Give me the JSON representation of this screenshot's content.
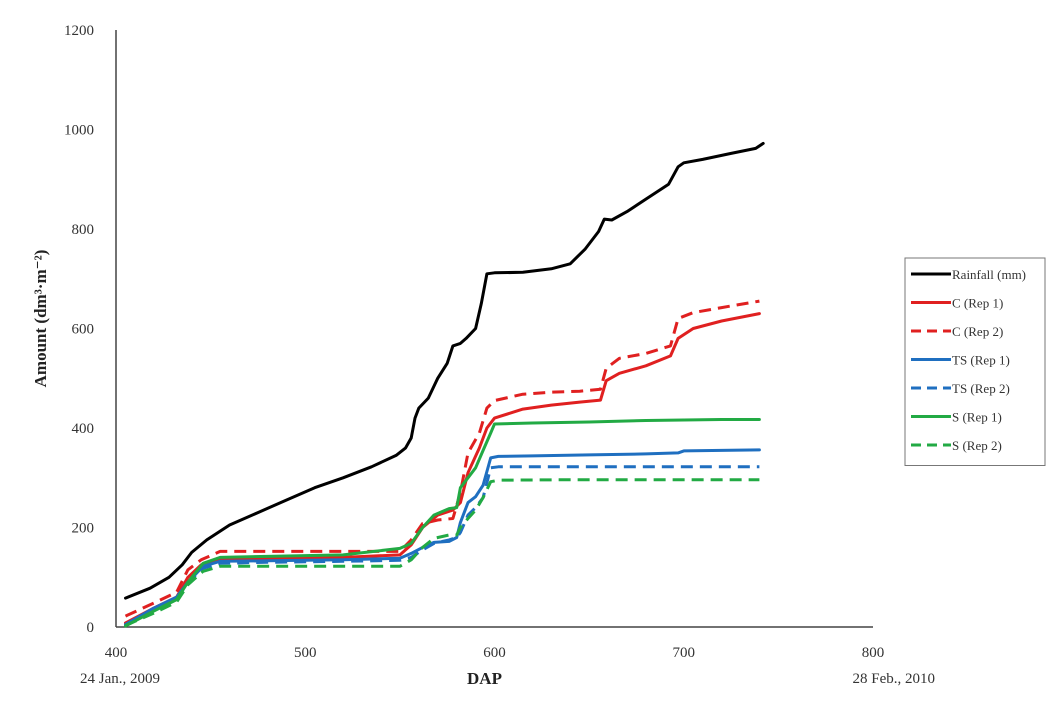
{
  "chart_data": {
    "type": "line",
    "title": "",
    "xlabel": "DAP",
    "ylabel": "Amount (dm³·m⁻²)",
    "xlim": [
      400,
      800
    ],
    "ylim": [
      0,
      1200
    ],
    "x_ticks": [
      400,
      500,
      600,
      700,
      800
    ],
    "y_ticks": [
      0,
      200,
      400,
      600,
      800,
      1000,
      1200
    ],
    "x_annotations": [
      {
        "x": 400,
        "text": "24 Jan., 2009"
      },
      {
        "x": 800,
        "text": "28 Feb., 2010"
      }
    ],
    "grid": false,
    "legend_position": "right",
    "series": [
      {
        "name": "Rainfall (mm)",
        "color": "#000000",
        "dash": "solid",
        "points": [
          [
            405,
            58
          ],
          [
            418,
            78
          ],
          [
            428,
            100
          ],
          [
            435,
            125
          ],
          [
            440,
            150
          ],
          [
            448,
            175
          ],
          [
            460,
            205
          ],
          [
            475,
            230
          ],
          [
            490,
            255
          ],
          [
            505,
            280
          ],
          [
            520,
            300
          ],
          [
            535,
            322
          ],
          [
            548,
            345
          ],
          [
            553,
            360
          ],
          [
            556,
            380
          ],
          [
            558,
            420
          ],
          [
            560,
            440
          ],
          [
            565,
            460
          ],
          [
            570,
            500
          ],
          [
            575,
            530
          ],
          [
            578,
            565
          ],
          [
            582,
            570
          ],
          [
            585,
            580
          ],
          [
            590,
            600
          ],
          [
            593,
            650
          ],
          [
            596,
            710
          ],
          [
            600,
            712
          ],
          [
            615,
            713
          ],
          [
            630,
            720
          ],
          [
            640,
            730
          ],
          [
            648,
            760
          ],
          [
            655,
            795
          ],
          [
            658,
            820
          ],
          [
            662,
            818
          ],
          [
            670,
            835
          ],
          [
            680,
            860
          ],
          [
            692,
            890
          ],
          [
            697,
            925
          ],
          [
            700,
            933
          ],
          [
            710,
            940
          ],
          [
            725,
            952
          ],
          [
            738,
            962
          ],
          [
            742,
            972
          ]
        ]
      },
      {
        "name": "C (Rep 1)",
        "color": "#e02020",
        "dash": "solid",
        "points": [
          [
            405,
            8
          ],
          [
            420,
            38
          ],
          [
            432,
            60
          ],
          [
            438,
            100
          ],
          [
            445,
            125
          ],
          [
            455,
            135
          ],
          [
            480,
            137
          ],
          [
            520,
            140
          ],
          [
            550,
            145
          ],
          [
            556,
            165
          ],
          [
            562,
            200
          ],
          [
            570,
            225
          ],
          [
            578,
            235
          ],
          [
            582,
            250
          ],
          [
            586,
            310
          ],
          [
            592,
            360
          ],
          [
            596,
            400
          ],
          [
            600,
            420
          ],
          [
            615,
            438
          ],
          [
            630,
            446
          ],
          [
            645,
            452
          ],
          [
            656,
            456
          ],
          [
            659,
            495
          ],
          [
            666,
            510
          ],
          [
            680,
            525
          ],
          [
            693,
            545
          ],
          [
            697,
            580
          ],
          [
            705,
            600
          ],
          [
            720,
            615
          ],
          [
            740,
            630
          ]
        ]
      },
      {
        "name": "C (Rep 2)",
        "color": "#e02020",
        "dash": "dashed",
        "points": [
          [
            405,
            22
          ],
          [
            420,
            48
          ],
          [
            432,
            70
          ],
          [
            438,
            115
          ],
          [
            445,
            135
          ],
          [
            455,
            152
          ],
          [
            480,
            152
          ],
          [
            520,
            152
          ],
          [
            550,
            152
          ],
          [
            556,
            175
          ],
          [
            562,
            208
          ],
          [
            570,
            215
          ],
          [
            578,
            218
          ],
          [
            582,
            270
          ],
          [
            586,
            350
          ],
          [
            592,
            390
          ],
          [
            596,
            440
          ],
          [
            600,
            455
          ],
          [
            615,
            468
          ],
          [
            630,
            472
          ],
          [
            645,
            474
          ],
          [
            656,
            478
          ],
          [
            659,
            520
          ],
          [
            666,
            540
          ],
          [
            680,
            550
          ],
          [
            693,
            565
          ],
          [
            697,
            620
          ],
          [
            705,
            632
          ],
          [
            720,
            642
          ],
          [
            740,
            655
          ]
        ]
      },
      {
        "name": "TS (Rep 1)",
        "color": "#1f6fc0",
        "dash": "solid",
        "points": [
          [
            405,
            5
          ],
          [
            420,
            38
          ],
          [
            432,
            60
          ],
          [
            438,
            90
          ],
          [
            446,
            122
          ],
          [
            455,
            132
          ],
          [
            480,
            133
          ],
          [
            520,
            135
          ],
          [
            550,
            138
          ],
          [
            556,
            148
          ],
          [
            562,
            160
          ],
          [
            568,
            170
          ],
          [
            576,
            172
          ],
          [
            580,
            180
          ],
          [
            582,
            210
          ],
          [
            586,
            250
          ],
          [
            590,
            262
          ],
          [
            594,
            285
          ],
          [
            598,
            340
          ],
          [
            602,
            343
          ],
          [
            620,
            344
          ],
          [
            650,
            346
          ],
          [
            680,
            348
          ],
          [
            697,
            350
          ],
          [
            700,
            354
          ],
          [
            720,
            355
          ],
          [
            740,
            356
          ]
        ]
      },
      {
        "name": "TS (Rep 2)",
        "color": "#1f6fc0",
        "dash": "dashed",
        "points": [
          [
            405,
            5
          ],
          [
            420,
            34
          ],
          [
            432,
            55
          ],
          [
            438,
            90
          ],
          [
            446,
            118
          ],
          [
            455,
            128
          ],
          [
            480,
            130
          ],
          [
            520,
            132
          ],
          [
            550,
            134
          ],
          [
            556,
            140
          ],
          [
            562,
            155
          ],
          [
            568,
            168
          ],
          [
            576,
            175
          ],
          [
            580,
            180
          ],
          [
            582,
            190
          ],
          [
            586,
            225
          ],
          [
            590,
            240
          ],
          [
            594,
            260
          ],
          [
            598,
            320
          ],
          [
            602,
            322
          ],
          [
            640,
            322
          ],
          [
            680,
            322
          ],
          [
            700,
            322
          ],
          [
            720,
            322
          ],
          [
            740,
            322
          ]
        ]
      },
      {
        "name": "S (Rep 1)",
        "color": "#22aa44",
        "dash": "solid",
        "points": [
          [
            405,
            2
          ],
          [
            420,
            32
          ],
          [
            432,
            55
          ],
          [
            438,
            90
          ],
          [
            446,
            128
          ],
          [
            455,
            140
          ],
          [
            480,
            142
          ],
          [
            520,
            145
          ],
          [
            550,
            158
          ],
          [
            556,
            168
          ],
          [
            562,
            200
          ],
          [
            568,
            225
          ],
          [
            576,
            238
          ],
          [
            580,
            240
          ],
          [
            582,
            280
          ],
          [
            586,
            300
          ],
          [
            590,
            320
          ],
          [
            594,
            355
          ],
          [
            598,
            390
          ],
          [
            600,
            408
          ],
          [
            620,
            410
          ],
          [
            650,
            412
          ],
          [
            680,
            415
          ],
          [
            700,
            416
          ],
          [
            720,
            417
          ],
          [
            740,
            417
          ]
        ]
      },
      {
        "name": "S (Rep 2)",
        "color": "#22aa44",
        "dash": "dashed",
        "points": [
          [
            405,
            3
          ],
          [
            420,
            28
          ],
          [
            432,
            50
          ],
          [
            438,
            85
          ],
          [
            446,
            112
          ],
          [
            455,
            122
          ],
          [
            480,
            122
          ],
          [
            520,
            122
          ],
          [
            550,
            122
          ],
          [
            556,
            135
          ],
          [
            562,
            160
          ],
          [
            568,
            178
          ],
          [
            576,
            185
          ],
          [
            580,
            185
          ],
          [
            582,
            200
          ],
          [
            586,
            218
          ],
          [
            590,
            235
          ],
          [
            594,
            260
          ],
          [
            598,
            292
          ],
          [
            602,
            295
          ],
          [
            640,
            296
          ],
          [
            680,
            296
          ],
          [
            700,
            296
          ],
          [
            720,
            296
          ],
          [
            740,
            296
          ]
        ]
      }
    ]
  }
}
